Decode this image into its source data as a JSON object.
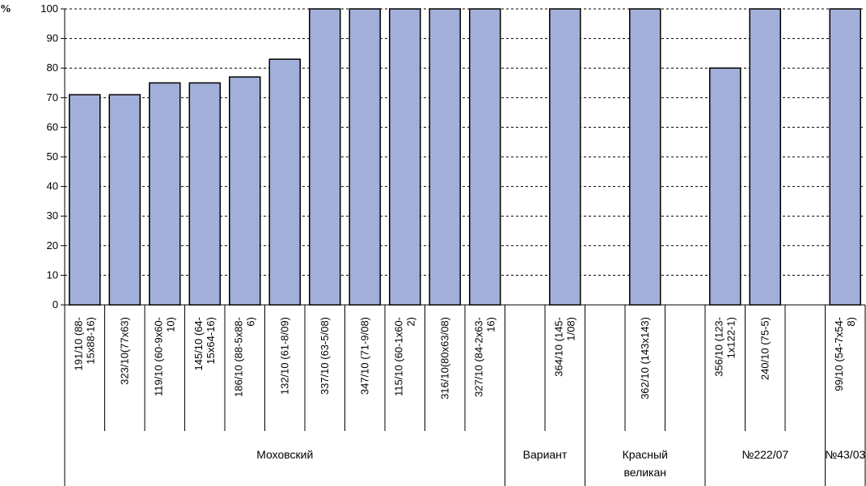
{
  "chart_data": {
    "type": "bar",
    "ylabel": "%",
    "ylim": [
      0,
      100
    ],
    "ytick_step": 10,
    "grid": true,
    "grid_style": "dashed",
    "bar_color": "#a1afd9",
    "bar_edge_color": "#000000",
    "slots": [
      {
        "category": [
          "191/10 (88-",
          "15x88-16)"
        ],
        "value": 71
      },
      {
        "category": [
          "323/10(77x63)"
        ],
        "value": 71
      },
      {
        "category": [
          "119/10 (60-9x60-",
          "10)"
        ],
        "value": 75
      },
      {
        "category": [
          "145/10 (64-",
          "15x64-16)"
        ],
        "value": 75
      },
      {
        "category": [
          "186/10 (88-5x88-",
          "6)"
        ],
        "value": 77
      },
      {
        "category": [
          "132/10 (61-8/09)"
        ],
        "value": 83
      },
      {
        "category": [
          "337/10 (63-5/08)"
        ],
        "value": 100
      },
      {
        "category": [
          "347/10 (71-9/08)"
        ],
        "value": 100
      },
      {
        "category": [
          "115/10 (60-1x60-",
          "2)"
        ],
        "value": 100
      },
      {
        "category": [
          "316/10(80x63/08)"
        ],
        "value": 100
      },
      {
        "category": [
          "327/10 (84-2x63-",
          "16)"
        ],
        "value": 100
      },
      {
        "category": null,
        "value": null
      },
      {
        "category": [
          "364/10 (145-",
          "1/08)"
        ],
        "value": 100
      },
      {
        "category": null,
        "value": null
      },
      {
        "category": [
          "362/10 (143x143)"
        ],
        "value": 100
      },
      {
        "category": null,
        "value": null
      },
      {
        "category": [
          "356/10 (123-",
          "1x122-1)"
        ],
        "value": 80
      },
      {
        "category": [
          "240/10 (75-5)"
        ],
        "value": 100
      },
      {
        "category": null,
        "value": null
      },
      {
        "category": [
          "99/10 (54-7x54-",
          "8)"
        ],
        "value": 100
      }
    ],
    "groups": [
      {
        "label": [
          "Моховский"
        ],
        "start": 0,
        "end": 11
      },
      {
        "label": [
          "Вариант"
        ],
        "start": 11,
        "end": 13
      },
      {
        "label": [
          "Красный",
          "великан"
        ],
        "start": 13,
        "end": 16
      },
      {
        "label": [
          "№222/07"
        ],
        "start": 16,
        "end": 19
      },
      {
        "label": [
          "№43/03"
        ],
        "start": 19,
        "end": 20
      }
    ]
  }
}
